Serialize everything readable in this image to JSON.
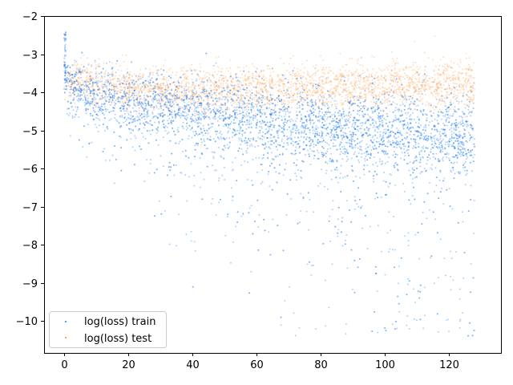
{
  "chart_data": {
    "type": "scatter",
    "title": "",
    "xlabel": "",
    "ylabel": "",
    "xlim": [
      -6.25,
      136.25
    ],
    "ylim": [
      -10.84,
      -2
    ],
    "xticks": [
      0,
      20,
      40,
      60,
      80,
      100,
      120
    ],
    "yticks": [
      -2,
      -3,
      -4,
      -5,
      -6,
      -7,
      -8,
      -9,
      -10
    ],
    "grid": false,
    "legend_position": "lower-left",
    "series": [
      {
        "name": "log(loss) train",
        "color": "#1f7ff0",
        "x_range": [
          0,
          128
        ],
        "trend": [
          {
            "x": 0,
            "y": -3.7,
            "spread": 0.25
          },
          {
            "x": 10,
            "y": -4.0,
            "spread": 0.35
          },
          {
            "x": 20,
            "y": -4.15,
            "spread": 0.4
          },
          {
            "x": 40,
            "y": -4.45,
            "spread": 0.45
          },
          {
            "x": 60,
            "y": -4.7,
            "spread": 0.5
          },
          {
            "x": 80,
            "y": -4.9,
            "spread": 0.5
          },
          {
            "x": 100,
            "y": -5.0,
            "spread": 0.55
          },
          {
            "x": 128,
            "y": -5.2,
            "spread": 0.55
          }
        ],
        "initial_spike": {
          "x": 0,
          "y_top": -2.4
        },
        "lower_tail_min": -10.4
      },
      {
        "name": "log(loss) test",
        "color": "#ff7f0e",
        "x_range": [
          0,
          128
        ],
        "trend": [
          {
            "x": 0,
            "y": -3.7,
            "spread": 0.25
          },
          {
            "x": 20,
            "y": -3.9,
            "spread": 0.3
          },
          {
            "x": 40,
            "y": -3.95,
            "spread": 0.3
          },
          {
            "x": 60,
            "y": -3.9,
            "spread": 0.3
          },
          {
            "x": 80,
            "y": -3.85,
            "spread": 0.3
          },
          {
            "x": 100,
            "y": -3.82,
            "spread": 0.3
          },
          {
            "x": 128,
            "y": -3.8,
            "spread": 0.3
          }
        ]
      }
    ]
  }
}
